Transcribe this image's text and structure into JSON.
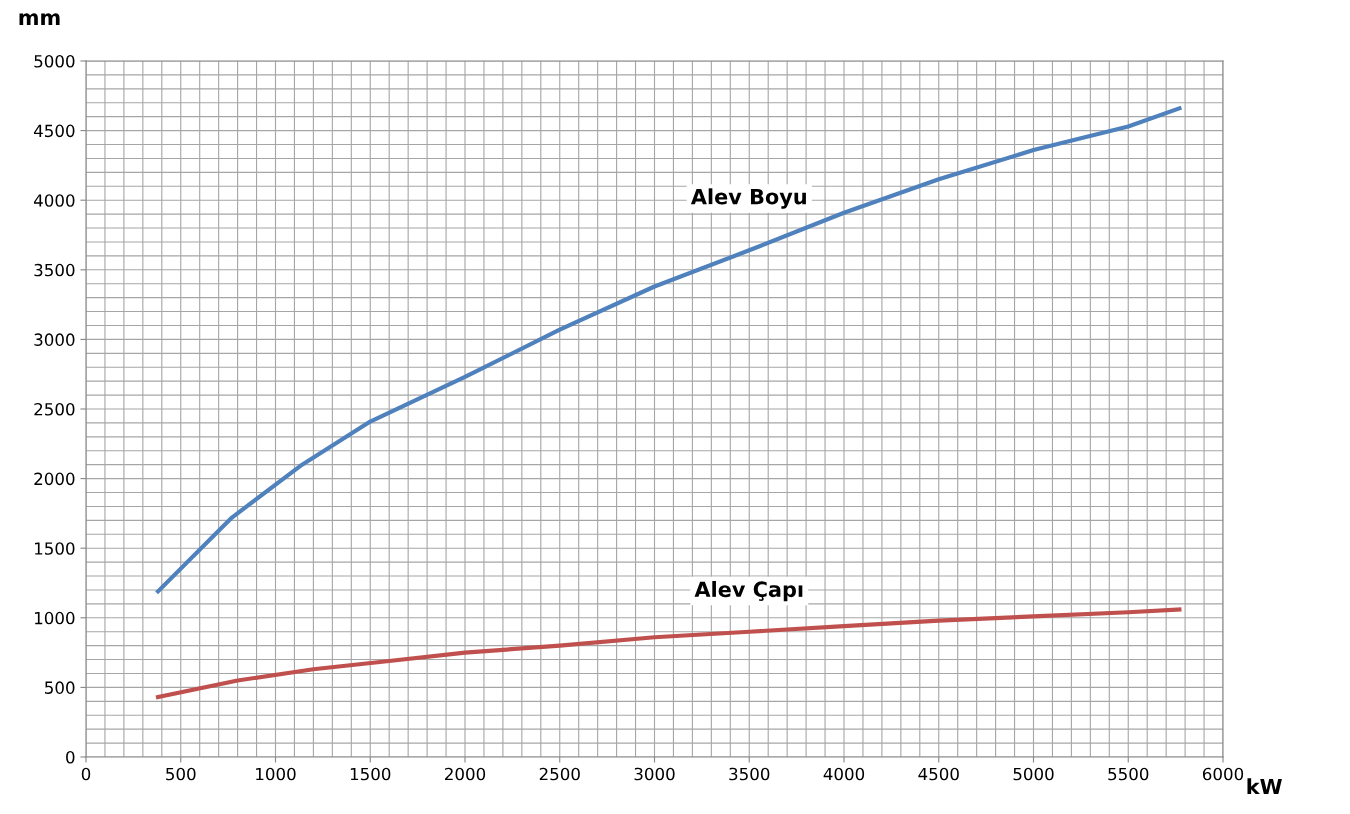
{
  "chart_data": {
    "type": "line",
    "xlabel": "kW",
    "ylabel": "mm",
    "xlim": [
      0,
      6000
    ],
    "xticks": [
      0,
      500,
      1000,
      1500,
      2000,
      2500,
      3000,
      3500,
      4000,
      4500,
      5000,
      5500,
      6000
    ],
    "ylim": [
      0,
      5000
    ],
    "yticks": [
      0,
      500,
      1000,
      1500,
      2000,
      2500,
      3000,
      3500,
      4000,
      4500,
      5000
    ],
    "grid": true,
    "legend": false,
    "marker": "none",
    "line_style": "solid",
    "series": [
      {
        "name": "Alev Boyu",
        "color": "#4f81bd",
        "x": [
          380,
          770,
          1130,
          1500,
          2000,
          2500,
          3000,
          3500,
          4000,
          4500,
          5000,
          5500,
          5770
        ],
        "values": [
          1190,
          1720,
          2090,
          2410,
          2730,
          3070,
          3380,
          3640,
          3910,
          4150,
          4360,
          4530,
          4660
        ]
      },
      {
        "name": "Alev Çapı",
        "color": "#c0504d",
        "x": [
          380,
          800,
          1200,
          1600,
          2000,
          2500,
          3000,
          3500,
          4000,
          4500,
          5000,
          5500,
          5770
        ],
        "values": [
          430,
          550,
          630,
          690,
          750,
          800,
          860,
          900,
          940,
          980,
          1010,
          1040,
          1060
        ]
      }
    ]
  }
}
